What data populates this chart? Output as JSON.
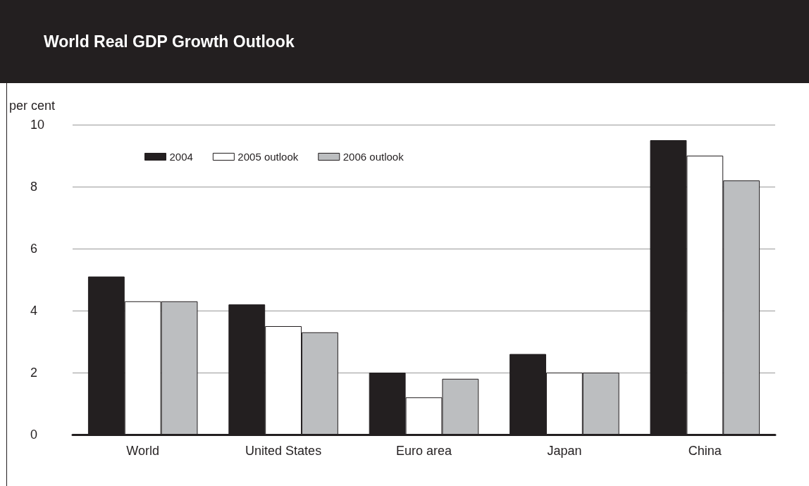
{
  "chart_data": {
    "type": "bar",
    "title": "World Real GDP Growth Outlook",
    "ylabel": "per cent",
    "categories": [
      "World",
      "United States",
      "Euro area",
      "Japan",
      "China"
    ],
    "series": [
      {
        "name": "2004",
        "color": "#231f20",
        "values": [
          5.1,
          4.2,
          2.0,
          2.6,
          9.5
        ]
      },
      {
        "name": "2005 outlook",
        "color": "#ffffff",
        "values": [
          4.3,
          3.5,
          1.2,
          2.0,
          9.0
        ]
      },
      {
        "name": "2006 outlook",
        "color": "#bcbec0",
        "values": [
          4.3,
          3.3,
          1.8,
          2.0,
          8.2
        ]
      }
    ],
    "ylim": [
      0,
      10
    ],
    "yticks": [
      0,
      2,
      4,
      6,
      8,
      10
    ],
    "grid": "y",
    "legend": "top left"
  }
}
